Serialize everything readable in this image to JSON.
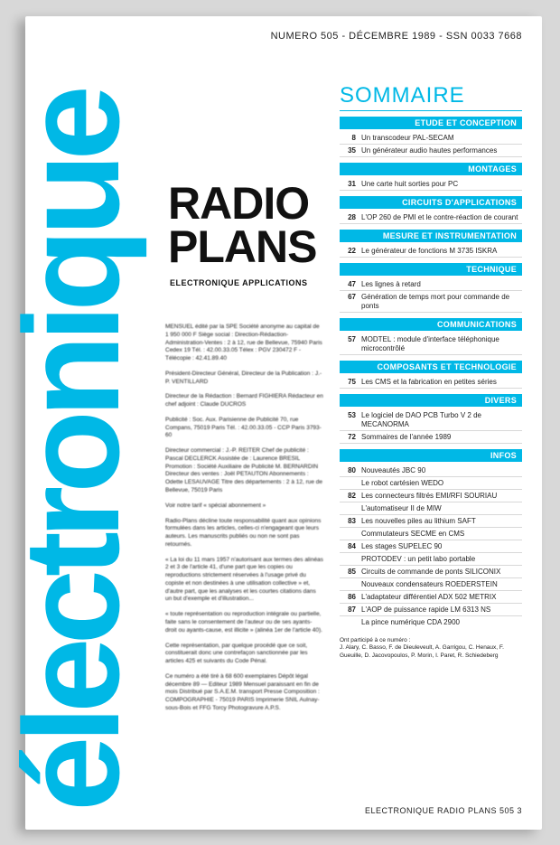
{
  "colors": {
    "cyan": "#00b8e6",
    "text": "#222222",
    "page_bg": "#ffffff",
    "outer_bg": "#d8d8d8"
  },
  "topline": "NUMERO 505 - DÉCEMBRE 1989 - SSN 0033 7668",
  "vertical_title": "électronique",
  "main_title_line1": "RADIO",
  "main_title_line2": "PLANS",
  "sub_title": "ELECTRONIQUE APPLICATIONS",
  "masthead": [
    "MENSUEL édité par la SPE\nSociété anonyme au capital de 1 950 000 F\nSiège social :\nDirection-Rédaction-Administration-Ventes :\n2 à 12, rue de Bellevue, 75940 Paris Cedex 19\nTél. : 42.00.33.05\nTélex : PGV 230472 F - Télécopie : 42.41.89.40",
    "Président-Directeur Général,\nDirecteur de la Publication :\nJ.-P. VENTILLARD",
    "Directeur de la Rédaction :\nBernard FIGHIERA\nRédacteur en chef adjoint :\nClaude DUCROS",
    "Publicité : Soc. Aux. Parisienne de Publicité\n70, rue Compans, 75019 Paris\nTél. : 42.00.33.05 - CCP Paris 3793-60",
    "Directeur commercial : J.-P. REITER\nChef de publicité : Pascal DECLERCK\nAssistée de : Laurence BRESIL\nPromotion : Société Auxiliaire de Publicité\nM. BERNARDIN\nDirecteur des ventes : Joël PETAUTON\nAbonnements : Odette LESAUVAGE\nTitre des départements :\n2 à 12, rue de Bellevue, 75019 Paris",
    "Voir notre tarif\n« spécial abonnement »",
    "Radio-Plans décline toute responsabilité quant aux opinions formulées dans les articles, celles-ci n'engageant que leurs auteurs. Les manuscrits publiés ou non ne sont pas retournés.",
    "« La loi du 11 mars 1957 n'autorisant aux termes des alinéas 2 et 3 de l'article 41, d'une part que les copies ou reproductions strictement réservées à l'usage privé du copiste et non destinées à une utilisation collective » et, d'autre part, que les analyses et les courtes citations dans un but d'exemple et d'illustration...",
    "« toute représentation ou reproduction intégrale ou partielle, faite sans le consentement de l'auteur ou de ses ayants-droit ou ayants-cause, est illicite » (alinéa 1er de l'article 40).",
    "Cette représentation, par quelque procédé que ce soit, constituerait donc une contrefaçon sanctionnée par les articles 425 et suivants du Code Pénal.",
    "Ce numéro a été tiré\nà 68 600 exemplaires\nDépôt légal décembre 89 — Editeur 1989\nMensuel paraissant en fin de mois\nDistribué par S.A.E.M. transport Presse\nComposition : COMPOGRAPHIE - 75019 PARIS\nImprimerie SNIL Aulnay-sous-Bois et FFG Torcy\nPhotogravure A.P.S."
  ],
  "sommaire_title": "SOMMAIRE",
  "sections": [
    {
      "title": "ETUDE ET CONCEPTION",
      "entries": [
        {
          "page": "8",
          "text": "Un transcodeur PAL-SECAM"
        },
        {
          "page": "35",
          "text": "Un générateur audio hautes performances"
        }
      ]
    },
    {
      "title": "MONTAGES",
      "entries": [
        {
          "page": "31",
          "text": "Une carte huit sorties pour PC"
        }
      ]
    },
    {
      "title": "CIRCUITS D'APPLICATIONS",
      "entries": [
        {
          "page": "28",
          "text": "L'OP 260 de PMI et le contre-réaction de courant"
        }
      ]
    },
    {
      "title": "MESURE ET INSTRUMENTATION",
      "entries": [
        {
          "page": "22",
          "text": "Le générateur de fonctions M 3735 ISKRA"
        }
      ]
    },
    {
      "title": "TECHNIQUE",
      "entries": [
        {
          "page": "47",
          "text": "Les lignes à retard"
        },
        {
          "page": "67",
          "text": "Génération de temps mort pour commande de ponts"
        }
      ]
    },
    {
      "title": "COMMUNICATIONS",
      "entries": [
        {
          "page": "57",
          "text": "MODTEL : module d'interface téléphonique microcontrôlé"
        }
      ]
    },
    {
      "title": "COMPOSANTS ET TECHNOLOGIE",
      "entries": [
        {
          "page": "75",
          "text": "Les CMS et la fabrication en petites séries"
        }
      ]
    },
    {
      "title": "DIVERS",
      "entries": [
        {
          "page": "53",
          "text": "Le logiciel de DAO PCB Turbo V 2 de MECANORMA"
        },
        {
          "page": "72",
          "text": "Sommaires de l'année 1989"
        }
      ]
    },
    {
      "title": "INFOS",
      "entries": [
        {
          "page": "80",
          "text": "Nouveautés JBC 90"
        },
        {
          "page": "",
          "text": "Le robot cartésien WEDO"
        },
        {
          "page": "82",
          "text": "Les connecteurs filtrés EMI/RFI SOURIAU"
        },
        {
          "page": "",
          "text": "L'automatiseur II de MIW"
        },
        {
          "page": "83",
          "text": "Les nouvelles piles au lithium SAFT"
        },
        {
          "page": "",
          "text": "Commutateurs SECME en CMS"
        },
        {
          "page": "84",
          "text": "Les stages SUPELEC 90"
        },
        {
          "page": "",
          "text": "PROTODEV : un petit labo portable"
        },
        {
          "page": "85",
          "text": "Circuits de commande de ponts SILICONIX"
        },
        {
          "page": "",
          "text": "Nouveaux condensateurs ROEDERSTEIN"
        },
        {
          "page": "86",
          "text": "L'adaptateur différentiel ADX 502 METRIX"
        },
        {
          "page": "87",
          "text": "L'AOP de puissance rapide LM 6313 NS"
        },
        {
          "page": "",
          "text": "La pince numérique CDA 2900"
        }
      ]
    }
  ],
  "contributors_label": "Ont participé à ce numéro :",
  "contributors": "J. Alary, C. Basso, F. de Dieuleveult, A. Garrigou, C. Henaux, F. Gueuille, D. Jacovopoulos, P. Morin, I. Paret, R. Schiedeberg",
  "footer": "ELECTRONIQUE RADIO PLANS 505   3"
}
